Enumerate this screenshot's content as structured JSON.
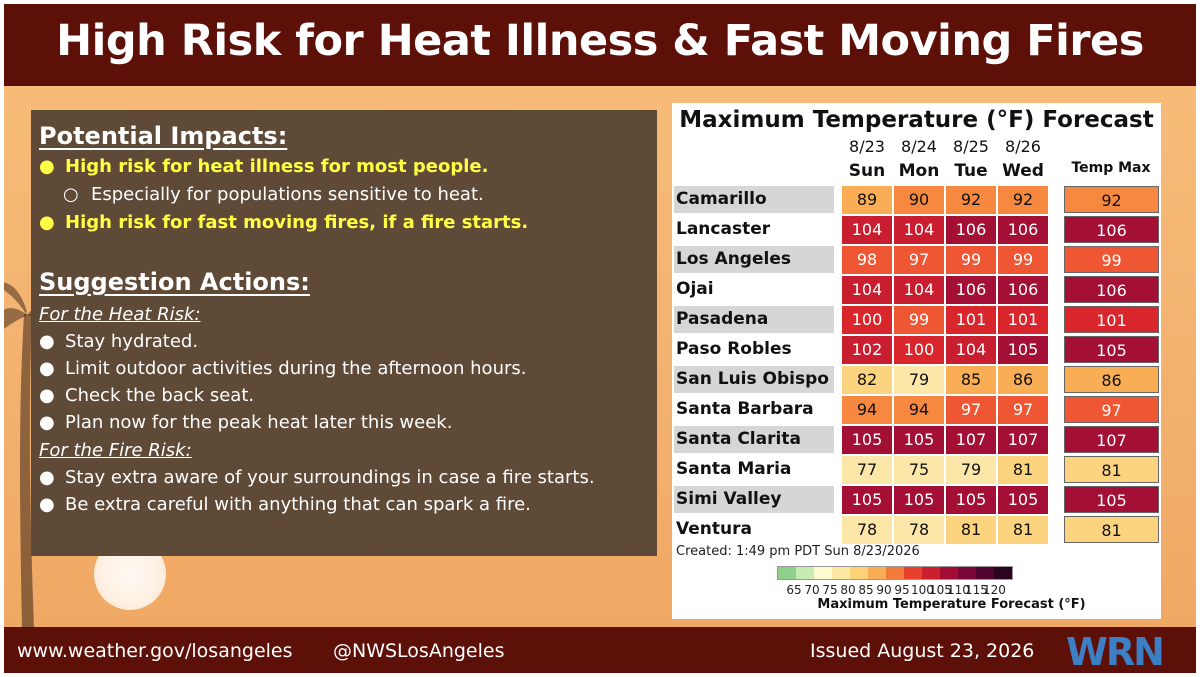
{
  "header": {
    "title": "High Risk for Heat Illness & Fast Moving Fires"
  },
  "impacts": {
    "title": "Potential Impacts:",
    "items": [
      "High risk for heat illness for most people.",
      "Especially for populations sensitive to heat.",
      "High risk for fast moving fires, if a fire starts."
    ]
  },
  "actions": {
    "title": "Suggestion Actions:",
    "heat_heading": "For the Heat Risk:",
    "heat_items": [
      "Stay hydrated.",
      "Limit outdoor activities during the afternoon hours.",
      "Check the back seat.",
      "Plan now for the peak heat later this week."
    ],
    "fire_heading": "For the Fire Risk:",
    "fire_items": [
      "Stay extra aware of your surroundings in case a fire starts.",
      "Be extra careful with anything that can spark a fire."
    ]
  },
  "forecast": {
    "title": "Maximum Temperature (°F) Forecast",
    "dates": [
      "8/23",
      "8/24",
      "8/25",
      "8/26"
    ],
    "days": [
      "Sun",
      "Mon",
      "Tue",
      "Wed"
    ],
    "max_header": "Temp Max",
    "rows": [
      {
        "city": "Camarillo",
        "temps": [
          89,
          90,
          92,
          92
        ],
        "max": 92
      },
      {
        "city": "Lancaster",
        "temps": [
          104,
          104,
          106,
          106
        ],
        "max": 106
      },
      {
        "city": "Los Angeles",
        "temps": [
          98,
          97,
          99,
          99
        ],
        "max": 99
      },
      {
        "city": "Ojai",
        "temps": [
          104,
          104,
          106,
          106
        ],
        "max": 106
      },
      {
        "city": "Pasadena",
        "temps": [
          100,
          99,
          101,
          101
        ],
        "max": 101
      },
      {
        "city": "Paso Robles",
        "temps": [
          102,
          100,
          104,
          105
        ],
        "max": 105
      },
      {
        "city": "San Luis Obispo",
        "temps": [
          82,
          79,
          85,
          86
        ],
        "max": 86
      },
      {
        "city": "Santa Barbara",
        "temps": [
          94,
          94,
          97,
          97
        ],
        "max": 97
      },
      {
        "city": "Santa Clarita",
        "temps": [
          105,
          105,
          107,
          107
        ],
        "max": 107
      },
      {
        "city": "Santa Maria",
        "temps": [
          77,
          75,
          79,
          81
        ],
        "max": 81
      },
      {
        "city": "Simi Valley",
        "temps": [
          105,
          105,
          105,
          105
        ],
        "max": 105
      },
      {
        "city": "Ventura",
        "temps": [
          78,
          78,
          81,
          81
        ],
        "max": 81
      }
    ],
    "created": "Created: 1:49 pm PDT Sun 8/23/2026",
    "legend_ticks": [
      "65",
      "70",
      "75",
      "80",
      "85",
      "90",
      "95",
      "100",
      "105",
      "110",
      "115",
      "120"
    ],
    "legend_colors": [
      "#8fd18a",
      "#c7ecb0",
      "#fefbd0",
      "#fde9a4",
      "#fcd279",
      "#f9ad55",
      "#f47c3b",
      "#e8402c",
      "#cc1f2d",
      "#a30d35",
      "#7a0735",
      "#520530",
      "#2c0420"
    ],
    "legend_title": "Maximum Temperature Forecast (°F)"
  },
  "footer": {
    "url": "www.weather.gov/losangeles",
    "handle": "@NWSLosAngeles",
    "issued": "Issued August 23, 2026",
    "logo_text": "WRN"
  },
  "colors": {
    "header_bg": "#5c1008",
    "highlight_text": "#ffff45",
    "panel_box": "#5f4a38"
  }
}
